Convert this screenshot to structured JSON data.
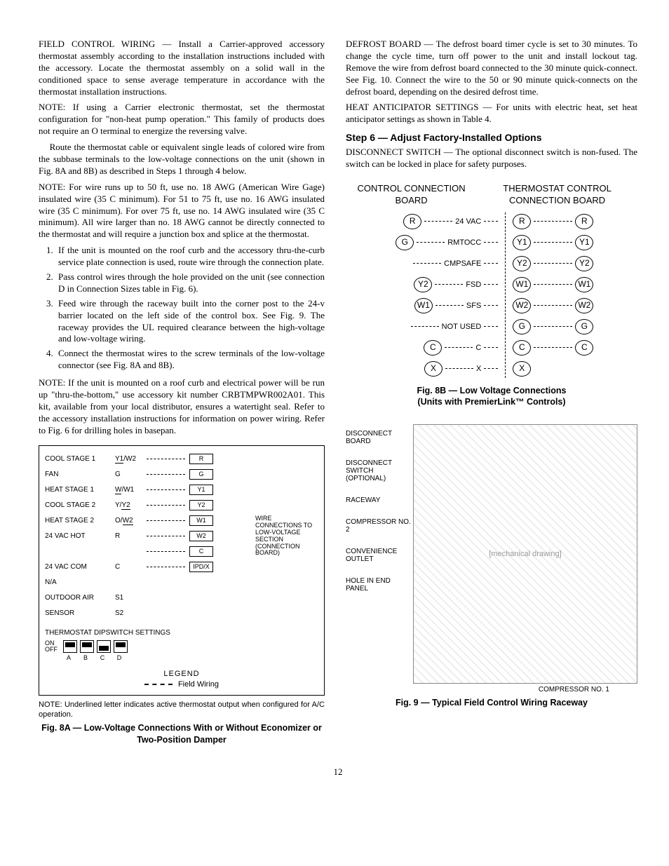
{
  "left": {
    "p1_lead": "FIELD CONTROL WIRING —",
    "p1": "Install a Carrier-approved accessory thermostat assembly according to the installation instructions included with the accessory. Locate the thermostat assembly on a solid wall in the conditioned space to sense average temperature in accordance with the thermostat installation instructions.",
    "p2": "NOTE: If using a Carrier electronic thermostat, set the thermostat configuration for \"non-heat pump operation.\" This family of products does not require an O terminal to energize the reversing valve.",
    "p3": "Route the thermostat cable or equivalent single leads of colored wire from the subbase terminals to the low-voltage connections on the unit (shown in Fig. 8A and 8B) as described in Steps 1 through 4 below.",
    "p4": "NOTE: For wire runs up to 50 ft, use no. 18 AWG (American Wire Gage) insulated wire (35 C minimum). For 51 to 75 ft, use no. 16 AWG insulated wire (35 C minimum). For over 75 ft, use no. 14 AWG insulated wire (35 C minimum). All wire larger than no. 18 AWG cannot be directly connected to the thermostat and will require a junction box and splice at the thermostat.",
    "ol": [
      "If the unit is mounted on the roof curb and the accessory thru-the-curb service plate connection is used, route wire through the connection plate.",
      "Pass control wires through the hole provided on the unit (see connection D in Connection Sizes table in Fig. 6).",
      "Feed wire through the raceway built into the corner post to the 24-v barrier located on the left side of the control box. See Fig. 9. The raceway provides the UL required clearance between the high-voltage and low-voltage wiring.",
      "Connect the thermostat wires to the screw terminals of the low-voltage connector (see Fig. 8A and 8B)."
    ],
    "p5": "NOTE: If the unit is mounted on a roof curb and electrical power will be run up \"thru-the-bottom,\" use accessory kit number CRBTMPWR002A01. This kit, available from your local distributor, ensures a watertight seal. Refer to the accessory installation instructions for information on power wiring. Refer to Fig. 6 for drilling holes in basepan."
  },
  "right": {
    "p1_lead": "DEFROST BOARD —",
    "p1": "The defrost board timer cycle is set to 30 minutes. To change the cycle time, turn off power to the unit and install lockout tag. Remove the wire from defrost board connected to the 30 minute quick-connect. See Fig. 10. Connect the wire to the 50 or 90 minute quick-connects on the defrost board, depending on the desired defrost time.",
    "p2_lead": "HEAT ANTICIPATOR SETTINGS —",
    "p2": "For units with electric heat, set heat anticipator settings as shown in Table 4.",
    "step6": "Step 6 — Adjust Factory-Installed Options",
    "p3_lead": "DISCONNECT SWITCH —",
    "p3": "The optional disconnect switch is non-fused. The switch can be locked in place for safety purposes."
  },
  "fig8a": {
    "rows": [
      {
        "label": "COOL STAGE 1",
        "sig": "Y1/W2",
        "ul": "Y1",
        "term": "R"
      },
      {
        "label": "FAN",
        "sig": "G",
        "term": "G"
      },
      {
        "label": "HEAT STAGE 1",
        "sig": "W/W1",
        "ul": "W",
        "term": "Y1"
      },
      {
        "label": "COOL STAGE 2",
        "sig": "Y/Y2",
        "ul": "Y2",
        "term": "Y2"
      },
      {
        "label": "HEAT STAGE 2",
        "sig": "O/W2",
        "ul": "W2",
        "term": "W1"
      },
      {
        "label": "24 VAC HOT",
        "sig": "R",
        "term": "W2"
      },
      {
        "label": "",
        "sig": "",
        "term": "C"
      },
      {
        "label": "24 VAC COM",
        "sig": "C",
        "term": "IPD/X"
      },
      {
        "label": "N/A",
        "sig": "",
        "term": ""
      },
      {
        "label": "OUTDOOR AIR",
        "sig": "S1",
        "term": ""
      },
      {
        "label": "SENSOR",
        "sig": "S2",
        "term": ""
      }
    ],
    "side_label": "WIRE CONNECTIONS TO LOW-VOLTAGE SECTION (CONNECTION BOARD)",
    "dip_title": "THERMOSTAT DIPSWITCH SETTINGS",
    "dip_on": "ON",
    "dip_off": "OFF",
    "dip_labels": [
      "A",
      "B",
      "C",
      "D"
    ],
    "legend_title": "LEGEND",
    "legend_text": "Field Wiring",
    "note": "NOTE: Underlined letter indicates active thermostat output when configured for A/C operation.",
    "caption": "Fig. 8A — Low-Voltage Connections With or Without Economizer or Two-Position Damper"
  },
  "fig8b": {
    "h1": "CONTROL CONNECTION BOARD",
    "h2": "THERMOSTAT CONTROL CONNECTION BOARD",
    "left_rows": [
      {
        "t": "R",
        "s": "24 VAC"
      },
      {
        "t": "G",
        "s": "RMTOCC"
      },
      {
        "t": "",
        "s": "CMPSAFE"
      },
      {
        "t": "Y2",
        "s": "FSD"
      },
      {
        "t": "W1",
        "s": "SFS"
      },
      {
        "t": "",
        "s": "NOT USED"
      },
      {
        "t": "C",
        "s": "C"
      },
      {
        "t": "X",
        "s": "X"
      }
    ],
    "right_rows": [
      {
        "a": "R",
        "b": "R"
      },
      {
        "a": "Y1",
        "b": "Y1"
      },
      {
        "a": "Y2",
        "b": "Y2"
      },
      {
        "a": "W1",
        "b": "W1"
      },
      {
        "a": "W2",
        "b": "W2"
      },
      {
        "a": "G",
        "b": "G"
      },
      {
        "a": "C",
        "b": "C"
      },
      {
        "a": "X",
        "b": ""
      }
    ],
    "caption1": "Fig. 8B — Low Voltage Connections",
    "caption2": "(Units with PremierLink™ Controls)"
  },
  "fig9": {
    "labels": [
      "DISCONNECT BOARD",
      "DISCONNECT SWITCH (OPTIONAL)",
      "RACEWAY",
      "COMPRESSOR NO. 2",
      "CONVENIENCE OUTLET",
      "HOLE IN END PANEL"
    ],
    "bottom": "COMPRESSOR NO. 1",
    "caption": "Fig. 9 — Typical Field Control Wiring Raceway",
    "placeholder": "[mechanical drawing]"
  },
  "page": "12"
}
